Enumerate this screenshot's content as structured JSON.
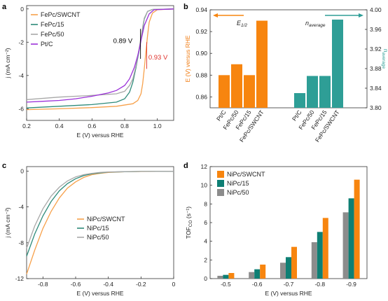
{
  "chart_data": [
    {
      "panel": "a",
      "type": "line",
      "xlabel": "E (V) versus RHE",
      "ylabel": "j (mA cm⁻²)",
      "xlim": [
        0.2,
        1.1
      ],
      "ylim": [
        -6.7,
        0.2
      ],
      "xticks": [
        "0.2",
        "0.4",
        "0.6",
        "0.8",
        "1.0"
      ],
      "yticks": [
        "0",
        "-2",
        "-4",
        "-6"
      ],
      "series": [
        {
          "name": "FePc/SWCNT",
          "color": "#F7A14B",
          "x": [
            0.2,
            0.4,
            0.6,
            0.75,
            0.85,
            0.88,
            0.9,
            0.91,
            0.92,
            0.93,
            0.94,
            0.95,
            0.97,
            1.0,
            1.1
          ],
          "y": [
            -6.05,
            -6.0,
            -5.93,
            -5.85,
            -5.7,
            -5.5,
            -5.1,
            -4.5,
            -3.6,
            -2.6,
            -1.6,
            -0.8,
            -0.25,
            -0.05,
            0.0
          ]
        },
        {
          "name": "FePc/15",
          "color": "#2E8B7A",
          "x": [
            0.2,
            0.4,
            0.6,
            0.75,
            0.8,
            0.83,
            0.85,
            0.87,
            0.89,
            0.9,
            0.91,
            0.92,
            0.94,
            0.97,
            1.1
          ],
          "y": [
            -5.95,
            -5.85,
            -5.75,
            -5.6,
            -5.4,
            -5.0,
            -4.4,
            -3.5,
            -2.4,
            -1.8,
            -1.2,
            -0.6,
            -0.15,
            -0.03,
            0.0
          ]
        },
        {
          "name": "FePc/50",
          "color": "#A8A8A8",
          "x": [
            0.2,
            0.4,
            0.6,
            0.75,
            0.8,
            0.83,
            0.85,
            0.87,
            0.89,
            0.9,
            0.91,
            0.92,
            0.94,
            0.97,
            1.1
          ],
          "y": [
            -5.45,
            -5.3,
            -5.2,
            -5.1,
            -4.95,
            -4.6,
            -4.2,
            -3.4,
            -2.3,
            -1.7,
            -1.1,
            -0.55,
            -0.15,
            -0.03,
            0.0
          ]
        },
        {
          "name": "Pt/C",
          "color": "#9B30D9",
          "x": [
            0.2,
            0.3,
            0.4,
            0.5,
            0.6,
            0.7,
            0.75,
            0.8,
            0.83,
            0.86,
            0.88,
            0.89,
            0.9,
            0.92,
            0.95,
            0.98,
            1.1
          ],
          "y": [
            -5.6,
            -5.55,
            -5.5,
            -5.4,
            -5.25,
            -5.05,
            -4.9,
            -4.6,
            -4.2,
            -3.5,
            -2.8,
            -2.4,
            -1.9,
            -1.0,
            -0.3,
            -0.05,
            0.0
          ]
        }
      ],
      "annotations": [
        {
          "text": "0.89 V",
          "color": "#000000"
        },
        {
          "text": "0.93 V",
          "color": "#E0302A"
        }
      ]
    },
    {
      "panel": "b",
      "type": "bar",
      "ylabel_left": "E (V) versus RHE",
      "ylabel_left_color": "#F07A10",
      "ylim_left": [
        0.85,
        0.94
      ],
      "yticks_left": [
        "0.86",
        "0.88",
        "0.90",
        "0.92",
        "0.94"
      ],
      "ylabel_right": "n",
      "ylabel_right_sub": "average",
      "ylabel_right_color": "#2E9E96",
      "ylim_right": [
        3.8,
        4.0
      ],
      "yticks_right": [
        "3.80",
        "3.84",
        "3.88",
        "3.92",
        "3.96",
        "4.00"
      ],
      "legend_left": {
        "text": "E",
        "sub": "1/2"
      },
      "legend_right": {
        "text": "n",
        "sub": "average"
      },
      "categories_left": [
        "Pt/C",
        "FePc/50",
        "FePc/15",
        "FePc/SWCNT"
      ],
      "values_left": [
        0.88,
        0.89,
        0.88,
        0.93
      ],
      "color_left": "#F7850F",
      "categories_right": [
        "Pt/C",
        "FePc/50",
        "FePc/15",
        "FePc/SWCNT"
      ],
      "values_right": [
        3.83,
        3.865,
        3.865,
        3.98
      ],
      "color_right": "#2E9E96"
    },
    {
      "panel": "c",
      "type": "line",
      "xlabel": "E (V) versus RHE",
      "ylabel": "j (mA cm⁻²)",
      "xlim": [
        -0.9,
        0.0
      ],
      "ylim": [
        -12,
        0.5
      ],
      "xticks": [
        "-0.8",
        "-0.6",
        "-0.4",
        "-0.2",
        "0"
      ],
      "yticks": [
        "0",
        "-4",
        "-8",
        "-12"
      ],
      "series": [
        {
          "name": "NiPc/SWCNT",
          "color": "#F7A14B",
          "x": [
            -0.9,
            -0.85,
            -0.8,
            -0.75,
            -0.7,
            -0.65,
            -0.6,
            -0.55,
            -0.5,
            -0.45,
            -0.4,
            -0.3,
            -0.2,
            -0.1,
            0.0
          ],
          "y": [
            -11.5,
            -8.8,
            -6.4,
            -4.5,
            -3.0,
            -1.9,
            -1.2,
            -0.7,
            -0.4,
            -0.25,
            -0.15,
            -0.08,
            -0.05,
            -0.03,
            -0.02
          ]
        },
        {
          "name": "NiPc/15",
          "color": "#2E8B7A",
          "x": [
            -0.9,
            -0.85,
            -0.8,
            -0.75,
            -0.7,
            -0.65,
            -0.6,
            -0.55,
            -0.5,
            -0.45,
            -0.4,
            -0.3,
            -0.2,
            -0.1,
            0.0
          ],
          "y": [
            -9.5,
            -7.0,
            -5.0,
            -3.4,
            -2.2,
            -1.4,
            -0.85,
            -0.5,
            -0.3,
            -0.2,
            -0.12,
            -0.07,
            -0.04,
            -0.03,
            -0.02
          ]
        },
        {
          "name": "NiPc/50",
          "color": "#A8A8A8",
          "x": [
            -0.9,
            -0.85,
            -0.8,
            -0.75,
            -0.7,
            -0.65,
            -0.6,
            -0.55,
            -0.5,
            -0.45,
            -0.4,
            -0.3,
            -0.2,
            -0.1,
            0.0
          ],
          "y": [
            -8.6,
            -6.1,
            -4.2,
            -2.8,
            -1.8,
            -1.1,
            -0.65,
            -0.4,
            -0.25,
            -0.15,
            -0.1,
            -0.06,
            -0.04,
            -0.03,
            -0.02
          ]
        }
      ]
    },
    {
      "panel": "d",
      "type": "bar",
      "xlabel": "E (V) versus RHE",
      "ylabel": "TOF",
      "ylabel_sub": "CO",
      "ylabel_unit": " (s⁻¹)",
      "ylim": [
        0,
        12
      ],
      "yticks": [
        "0",
        "2",
        "4",
        "6",
        "8",
        "10",
        "12"
      ],
      "categories": [
        "-0.5",
        "-0.6",
        "-0.7",
        "-0.8",
        "-0.9"
      ],
      "series": [
        {
          "name": "NiPc/50",
          "color": "#8C8C8C",
          "values": [
            0.3,
            0.7,
            1.7,
            3.9,
            7.1
          ]
        },
        {
          "name": "NiPc/15",
          "color": "#0E7F74",
          "values": [
            0.4,
            1.0,
            2.3,
            5.0,
            8.6
          ]
        },
        {
          "name": "NiPc/SWCNT",
          "color": "#F7850F",
          "values": [
            0.6,
            1.5,
            3.4,
            6.5,
            10.6
          ]
        }
      ],
      "legend_order": [
        "NiPc/SWCNT",
        "NiPc/15",
        "NiPc/50"
      ]
    }
  ],
  "panel_labels": [
    "a",
    "b",
    "c",
    "d"
  ]
}
